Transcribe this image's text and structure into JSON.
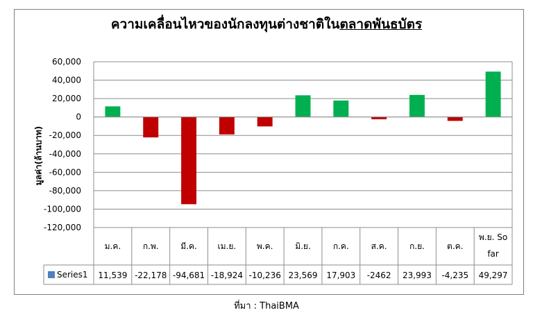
{
  "title_plain": "ความเคลื่อนไหวของนักลงทุนต่างชาติใน",
  "title_underlined": "ตลาดพันธบัตร",
  "source_label": "ที่มา : ThaiBMA",
  "chart_data": {
    "type": "bar",
    "ylabel": "มูลค่า(ล้านบาท)",
    "ylim": [
      -120000,
      60000
    ],
    "yticks": [
      "60,000",
      "40,000",
      "20,000",
      "0",
      "-20,000",
      "-40,000",
      "-60,000",
      "-80,000",
      "-100,000",
      "-120,000"
    ],
    "categories": [
      "ม.ค.",
      "ก.พ.",
      "มี.ค.",
      "เม.ย.",
      "พ.ค.",
      "มิ.ย.",
      "ก.ค.",
      "ส.ค.",
      "ก.ย.",
      "ต.ค.",
      "พ.ย. So far"
    ],
    "series": [
      {
        "name": "Series1",
        "values": [
          11539,
          -22178,
          -94681,
          -18924,
          -10236,
          23569,
          17903,
          -2462,
          23993,
          -4235,
          49297
        ],
        "labels": [
          "11,539",
          "-22,178",
          "-94,681",
          "-18,924",
          "-10,236",
          "23,569",
          "17,903",
          "-2462",
          "23,993",
          "-4,235",
          "49,297"
        ]
      }
    ],
    "colors": {
      "positive": "#00b050",
      "negative": "#c00000",
      "legend_key": "#4f81bd"
    },
    "grid": true,
    "legend": "data-table"
  }
}
